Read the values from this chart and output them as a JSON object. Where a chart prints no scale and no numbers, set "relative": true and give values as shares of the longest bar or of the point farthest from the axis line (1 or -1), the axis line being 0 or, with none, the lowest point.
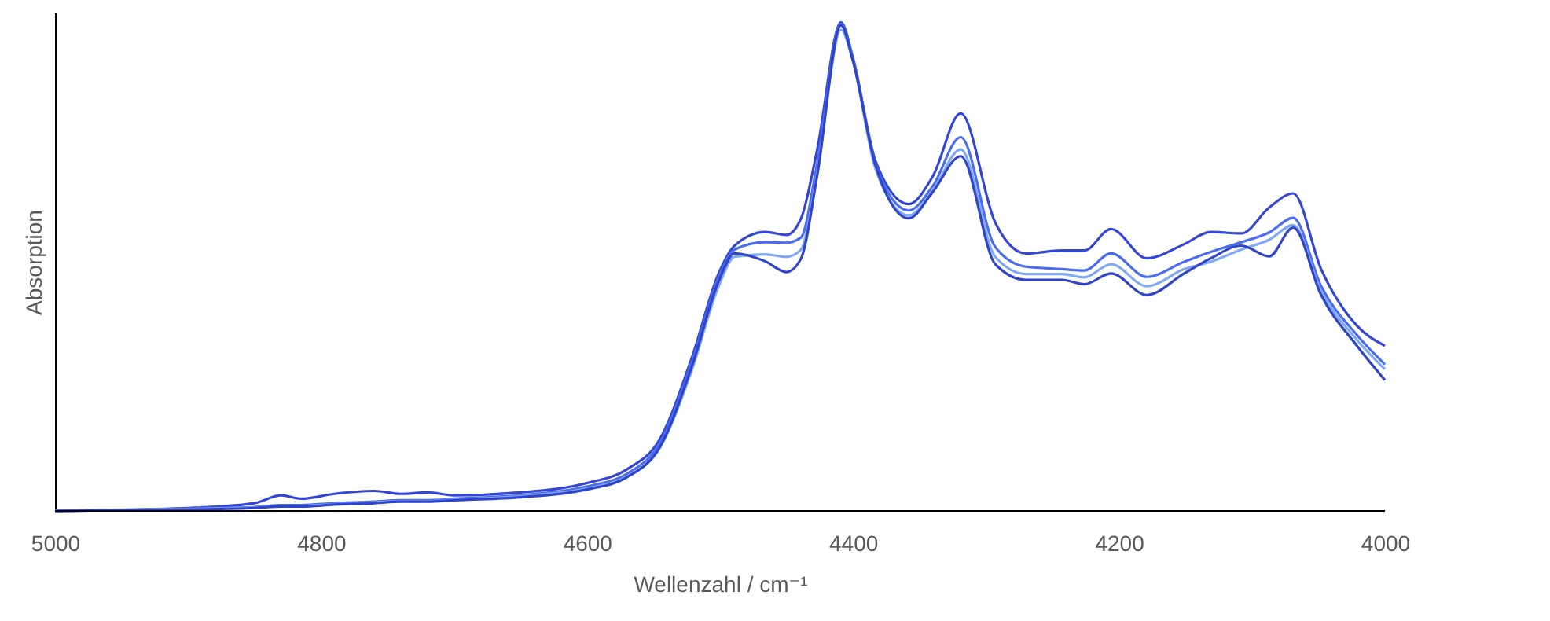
{
  "chart_data": {
    "type": "line",
    "xlabel": "Wellenzahl / cm⁻¹",
    "ylabel": "Absorption",
    "relative": true,
    "tick_labels": "x",
    "grid": false,
    "line_style": "solid",
    "x": [
      5000,
      4900,
      4850,
      4830,
      4815,
      4790,
      4760,
      4740,
      4720,
      4700,
      4650,
      4600,
      4570,
      4545,
      4521,
      4501,
      4489,
      4466,
      4450,
      4439,
      4427,
      4409,
      4400,
      4383,
      4358,
      4340,
      4319,
      4293,
      4270,
      4243,
      4226,
      4206,
      4179,
      4151,
      4131,
      4108,
      4087,
      4069,
      4048,
      4021,
      4000
    ],
    "xlim": [
      5000,
      4000
    ],
    "xticks": [
      5000,
      4800,
      4600,
      4400,
      4200,
      4000
    ],
    "series": [
      {
        "color": "#3346d6",
        "values": [
          0,
          0.006,
          0.016,
          0.032,
          0.025,
          0.035,
          0.041,
          0.035,
          0.038,
          0.032,
          0.038,
          0.057,
          0.085,
          0.148,
          0.315,
          0.486,
          0.543,
          0.571,
          0.565,
          0.599,
          0.738,
          1,
          0.927,
          0.716,
          0.628,
          0.685,
          0.814,
          0.59,
          0.527,
          0.533,
          0.533,
          0.577,
          0.517,
          0.546,
          0.571,
          0.568,
          0.621,
          0.65,
          0.495,
          0.379,
          0.338
        ]
      },
      {
        "color": "#4a6cf0",
        "values": [
          0,
          0.005,
          0.008,
          0.012,
          0.012,
          0.016,
          0.019,
          0.022,
          0.022,
          0.025,
          0.032,
          0.05,
          0.076,
          0.14,
          0.306,
          0.478,
          0.535,
          0.55,
          0.549,
          0.56,
          0.71,
          0.997,
          0.925,
          0.71,
          0.615,
          0.665,
          0.765,
          0.54,
          0.5,
          0.495,
          0.492,
          0.527,
          0.479,
          0.51,
          0.53,
          0.55,
          0.57,
          0.6,
          0.46,
          0.36,
          0.3
        ]
      },
      {
        "color": "#7fa8f5",
        "values": [
          0,
          0.004,
          0.007,
          0.01,
          0.01,
          0.014,
          0.017,
          0.02,
          0.02,
          0.023,
          0.03,
          0.046,
          0.07,
          0.13,
          0.29,
          0.46,
          0.52,
          0.525,
          0.52,
          0.535,
          0.69,
          0.985,
          0.92,
          0.7,
          0.605,
          0.655,
          0.74,
          0.52,
          0.485,
          0.485,
          0.478,
          0.505,
          0.46,
          0.495,
          0.51,
          0.535,
          0.555,
          0.585,
          0.45,
          0.35,
          0.29
        ]
      },
      {
        "color": "#2f44c8",
        "values": [
          0,
          0.003,
          0.006,
          0.009,
          0.009,
          0.013,
          0.016,
          0.019,
          0.019,
          0.022,
          0.028,
          0.044,
          0.069,
          0.132,
          0.297,
          0.47,
          0.527,
          0.511,
          0.489,
          0.517,
          0.685,
          0.994,
          0.921,
          0.707,
          0.599,
          0.653,
          0.726,
          0.505,
          0.473,
          0.473,
          0.464,
          0.486,
          0.442,
          0.486,
          0.517,
          0.543,
          0.521,
          0.58,
          0.442,
          0.338,
          0.268
        ]
      }
    ]
  }
}
